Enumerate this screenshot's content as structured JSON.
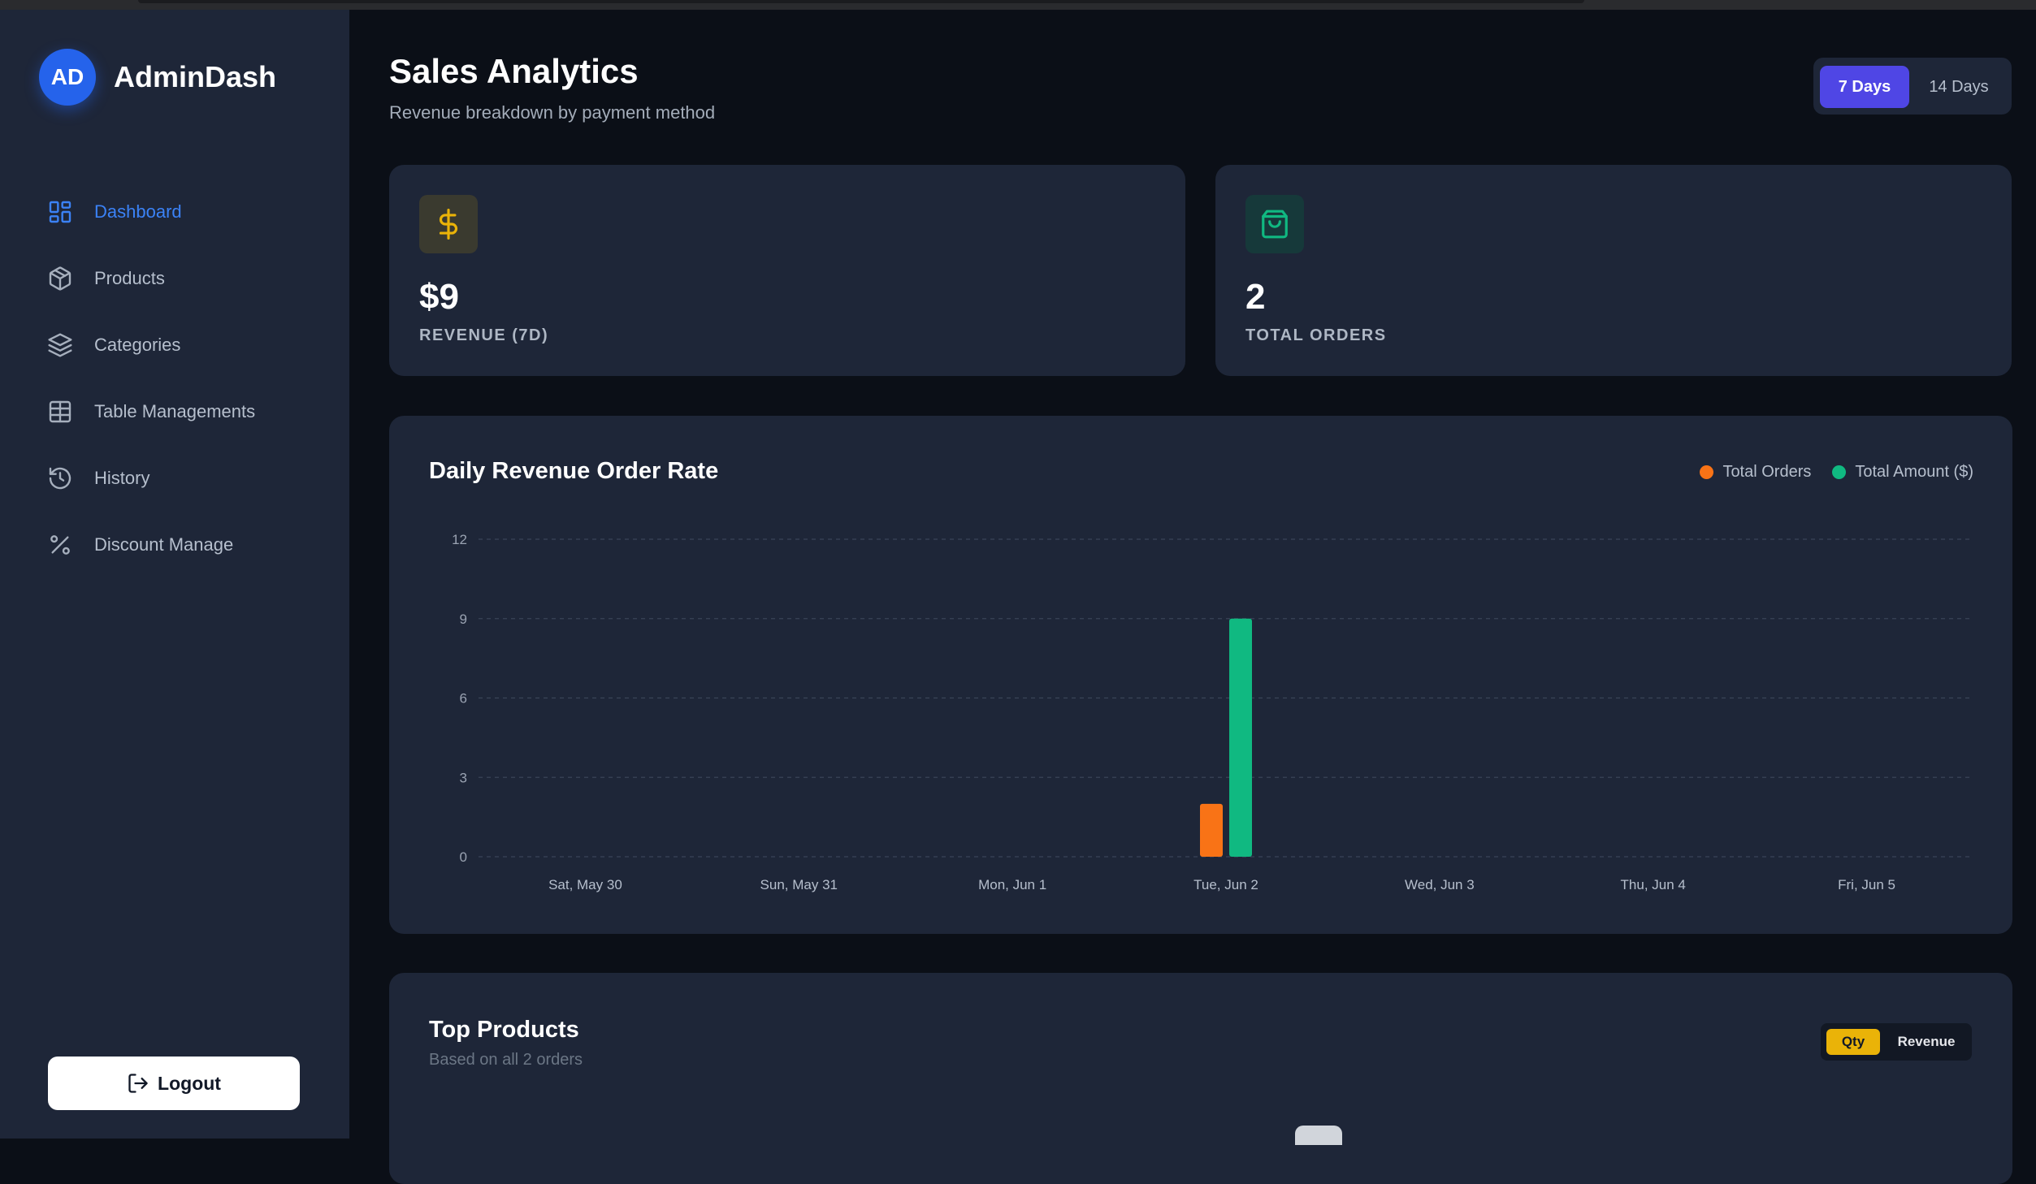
{
  "brand": {
    "initials": "AD",
    "name": "AdminDash",
    "accent": "#2563eb"
  },
  "sidebar": {
    "items": [
      {
        "label": "Dashboard",
        "icon": "grid-icon",
        "active": true
      },
      {
        "label": "Products",
        "icon": "box-icon",
        "active": false
      },
      {
        "label": "Categories",
        "icon": "layers-icon",
        "active": false
      },
      {
        "label": "Table Managements",
        "icon": "table-icon",
        "active": false
      },
      {
        "label": "History",
        "icon": "history-icon",
        "active": false
      },
      {
        "label": "Discount Manage",
        "icon": "percent-icon",
        "active": false
      }
    ],
    "logout_label": "Logout"
  },
  "header": {
    "title": "Sales Analytics",
    "subtitle": "Revenue breakdown by payment method",
    "range_options": [
      "7 Days",
      "14 Days"
    ],
    "selected_range": "7 Days"
  },
  "stats": [
    {
      "value": "$9",
      "label": "REVENUE (7D)",
      "icon": "dollar-icon",
      "color": "#eab308"
    },
    {
      "value": "2",
      "label": "TOTAL ORDERS",
      "icon": "shopping-bag-icon",
      "color": "#10b981"
    }
  ],
  "chart_data": {
    "type": "bar",
    "title": "Daily Revenue Order Rate",
    "categories": [
      "Sat, May 30",
      "Sun, May 31",
      "Mon, Jun 1",
      "Tue, Jun 2",
      "Wed, Jun 3",
      "Thu, Jun 4",
      "Fri, Jun 5"
    ],
    "series": [
      {
        "name": "Total Orders",
        "color": "#f97316",
        "values": [
          0,
          0,
          0,
          2,
          0,
          0,
          0
        ]
      },
      {
        "name": "Total Amount ($)",
        "color": "#10b981",
        "values": [
          0,
          0,
          0,
          9,
          0,
          0,
          0
        ]
      }
    ],
    "yticks": [
      0,
      3,
      6,
      9,
      12
    ],
    "ylim": [
      0,
      12
    ],
    "grid": true,
    "legend": "top-right",
    "xlabel": "",
    "ylabel": ""
  },
  "top_products": {
    "title": "Top Products",
    "subtitle": "Based on all 2 orders",
    "modes": [
      "Qty",
      "Revenue"
    ],
    "selected_mode": "Qty"
  }
}
